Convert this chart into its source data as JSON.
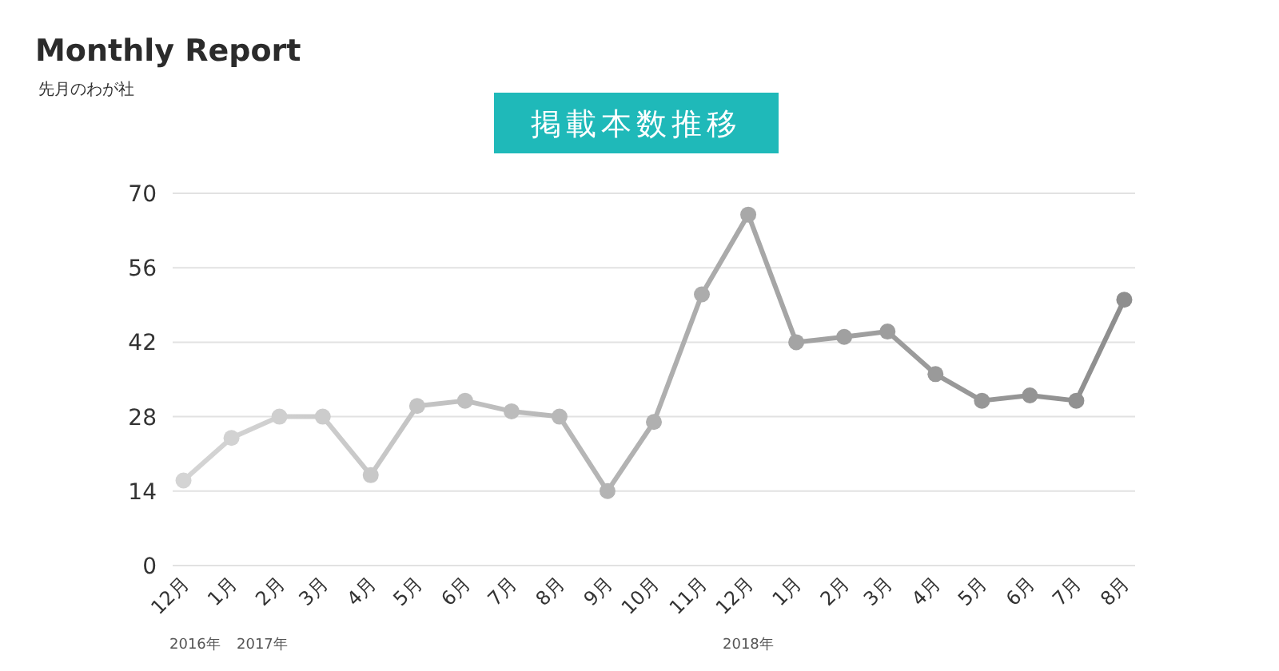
{
  "chart_data": {
    "type": "line",
    "title": "掲載本数推移",
    "annotations": [
      "Monthly Report",
      "先月のわが社",
      "2016年",
      "2017年",
      "2018年"
    ],
    "x": [
      "2016-12",
      "2017-01",
      "2017-02",
      "2017-03",
      "2017-04",
      "2017-05",
      "2017-06",
      "2017-07",
      "2017-08",
      "2017-09",
      "2017-10",
      "2017-11",
      "2017-12",
      "2018-01",
      "2018-02",
      "2018-03",
      "2018-04",
      "2018-05",
      "2018-06",
      "2018-07",
      "2018-08"
    ],
    "series": [
      {
        "values": [
          16,
          24,
          28,
          28,
          17,
          30,
          31,
          29,
          28,
          14,
          27,
          51,
          66,
          42,
          43,
          44,
          36,
          31,
          32,
          31,
          50
        ],
        "colors": [
          "#d4d4d4",
          "#d2d2d2",
          "#cfcfcf",
          "#cccccc",
          "#c8c8c8",
          "#c4c4c4",
          "#c0c0c0",
          "#bcbcbc",
          "#b8b8b8",
          "#b4b4b4",
          "#b0b0b0",
          "#acacac",
          "#a8a8a8",
          "#a4a4a4",
          "#a0a0a0",
          "#9d9d9d",
          "#9a9a9a",
          "#979797",
          "#949494",
          "#919191",
          "#8e8e8e"
        ]
      }
    ],
    "xlim": [
      "2016-11-24",
      "2018-08-08"
    ],
    "xticks": [
      {
        "value": "2016-12",
        "label": "12月"
      },
      {
        "value": "2017-01",
        "label": "1月"
      },
      {
        "value": "2017-02",
        "label": "2月"
      },
      {
        "value": "2017-03",
        "label": "3月"
      },
      {
        "value": "2017-04",
        "label": "4月"
      },
      {
        "value": "2017-05",
        "label": "5月"
      },
      {
        "value": "2017-06",
        "label": "6月"
      },
      {
        "value": "2017-07",
        "label": "7月"
      },
      {
        "value": "2017-08",
        "label": "8月"
      },
      {
        "value": "2017-09",
        "label": "9月"
      },
      {
        "value": "2017-10",
        "label": "10月"
      },
      {
        "value": "2017-11",
        "label": "11月"
      },
      {
        "value": "2017-12",
        "label": "12月"
      },
      {
        "value": "2018-01",
        "label": "1月"
      },
      {
        "value": "2018-02",
        "label": "2月"
      },
      {
        "value": "2018-03",
        "label": "3月"
      },
      {
        "value": "2018-04",
        "label": "4月"
      },
      {
        "value": "2018-05",
        "label": "5月"
      },
      {
        "value": "2018-06",
        "label": "6月"
      },
      {
        "value": "2018-07",
        "label": "7月"
      },
      {
        "value": "2018-08",
        "label": "8月"
      }
    ],
    "ylim": [
      0,
      70
    ],
    "yticks": [
      0,
      14,
      28,
      42,
      56,
      70
    ],
    "grid": "y",
    "marker": "circle",
    "line_style": "solid"
  }
}
